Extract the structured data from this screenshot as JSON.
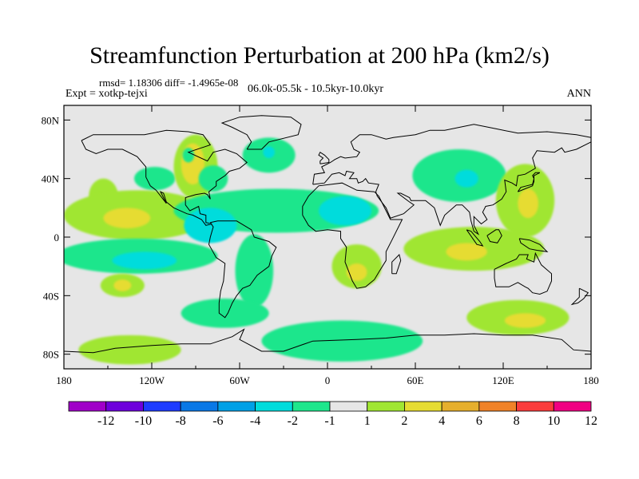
{
  "chart_data": {
    "type": "heatmap",
    "title": "Streamfunction Perturbation at 200 hPa (km2/s)",
    "left_string": "rmsd= 1.18306 diff= -1.4965e-08",
    "left_string2": "Expt = xotkp-tejxi",
    "center_string": "06.0k-05.5k - 10.5kyr-10.0kyr",
    "right_string": "ANN",
    "x_ticks": [
      "180",
      "120W",
      "60W",
      "0",
      "60E",
      "120E",
      "180"
    ],
    "x_tick_values": [
      -180,
      -120,
      -60,
      0,
      60,
      120,
      180
    ],
    "y_ticks": [
      "80N",
      "40N",
      "0",
      "40S",
      "80S"
    ],
    "y_tick_values": [
      80,
      40,
      0,
      -40,
      -80
    ],
    "xlim": [
      -180,
      180
    ],
    "ylim": [
      -90,
      90
    ],
    "colorbar": {
      "labels": [
        "-12",
        "-10",
        "-8",
        "-6",
        "-4",
        "-2",
        "-1",
        "1",
        "2",
        "4",
        "6",
        "8",
        "10",
        "12"
      ],
      "levels": [
        -12,
        -10,
        -8,
        -6,
        -4,
        -2,
        -1,
        1,
        2,
        4,
        6,
        8,
        10,
        12
      ],
      "colors": [
        "#a000c8",
        "#6e00dc",
        "#1e3cff",
        "#0a78e6",
        "#00a0e6",
        "#00dcdc",
        "#1ee68c",
        "#e6e6e6",
        "#a0e632",
        "#e6dc32",
        "#e6af2d",
        "#f08228",
        "#fa3c3c",
        "#f00082"
      ]
    },
    "background_color": "#e6e6e6",
    "features": [
      {
        "lon": -153,
        "lat": 28,
        "rx": 10,
        "ry": 12,
        "level": 2
      },
      {
        "lon": -118,
        "lat": 40,
        "rx": 14,
        "ry": 8,
        "level": -1
      },
      {
        "lon": -90,
        "lat": 48,
        "rx": 15,
        "ry": 22,
        "level": 2
      },
      {
        "lon": -92,
        "lat": 50,
        "rx": 8,
        "ry": 14,
        "level": 4
      },
      {
        "lon": -95,
        "lat": 56,
        "rx": 4,
        "ry": 5,
        "level": -1
      },
      {
        "lon": -78,
        "lat": 40,
        "rx": 10,
        "ry": 9,
        "level": -1
      },
      {
        "lon": -40,
        "lat": 56,
        "rx": 18,
        "ry": 12,
        "level": -1
      },
      {
        "lon": -40,
        "lat": 58,
        "rx": 4,
        "ry": 4,
        "level": -2
      },
      {
        "lon": 90,
        "lat": 42,
        "rx": 32,
        "ry": 18,
        "level": -1
      },
      {
        "lon": 95,
        "lat": 40,
        "rx": 8,
        "ry": 6,
        "level": -2
      },
      {
        "lon": 135,
        "lat": 25,
        "rx": 20,
        "ry": 25,
        "level": 2
      },
      {
        "lon": 137,
        "lat": 23,
        "rx": 7,
        "ry": 10,
        "level": 4
      },
      {
        "lon": -130,
        "lat": 15,
        "rx": 50,
        "ry": 17,
        "level": 2
      },
      {
        "lon": -137,
        "lat": 13,
        "rx": 16,
        "ry": 7,
        "level": 4
      },
      {
        "lon": -35,
        "lat": 18,
        "rx": 70,
        "ry": 15,
        "level": -1
      },
      {
        "lon": -80,
        "lat": 8,
        "rx": 18,
        "ry": 12,
        "level": -2
      },
      {
        "lon": 12,
        "lat": 18,
        "rx": 18,
        "ry": 10,
        "level": -2
      },
      {
        "lon": 100,
        "lat": -8,
        "rx": 48,
        "ry": 15,
        "level": 2
      },
      {
        "lon": 95,
        "lat": -10,
        "rx": 14,
        "ry": 6,
        "level": 4
      },
      {
        "lon": 20,
        "lat": -20,
        "rx": 17,
        "ry": 15,
        "level": 2
      },
      {
        "lon": 20,
        "lat": -24,
        "rx": 7,
        "ry": 6,
        "level": 4
      },
      {
        "lon": -130,
        "lat": -13,
        "rx": 55,
        "ry": 12,
        "level": -1
      },
      {
        "lon": -125,
        "lat": -16,
        "rx": 22,
        "ry": 6,
        "level": -2
      },
      {
        "lon": -50,
        "lat": -23,
        "rx": 13,
        "ry": 25,
        "level": -1
      },
      {
        "lon": -140,
        "lat": -33,
        "rx": 15,
        "ry": 8,
        "level": 2
      },
      {
        "lon": -140,
        "lat": -33,
        "rx": 6,
        "ry": 4,
        "level": 4
      },
      {
        "lon": -70,
        "lat": -52,
        "rx": 30,
        "ry": 10,
        "level": -1
      },
      {
        "lon": 130,
        "lat": -55,
        "rx": 35,
        "ry": 12,
        "level": 2
      },
      {
        "lon": 135,
        "lat": -57,
        "rx": 14,
        "ry": 5,
        "level": 4
      },
      {
        "lon": -135,
        "lat": -77,
        "rx": 35,
        "ry": 10,
        "level": 2
      },
      {
        "lon": 10,
        "lat": -71,
        "rx": 55,
        "ry": 14,
        "level": -1
      }
    ]
  }
}
